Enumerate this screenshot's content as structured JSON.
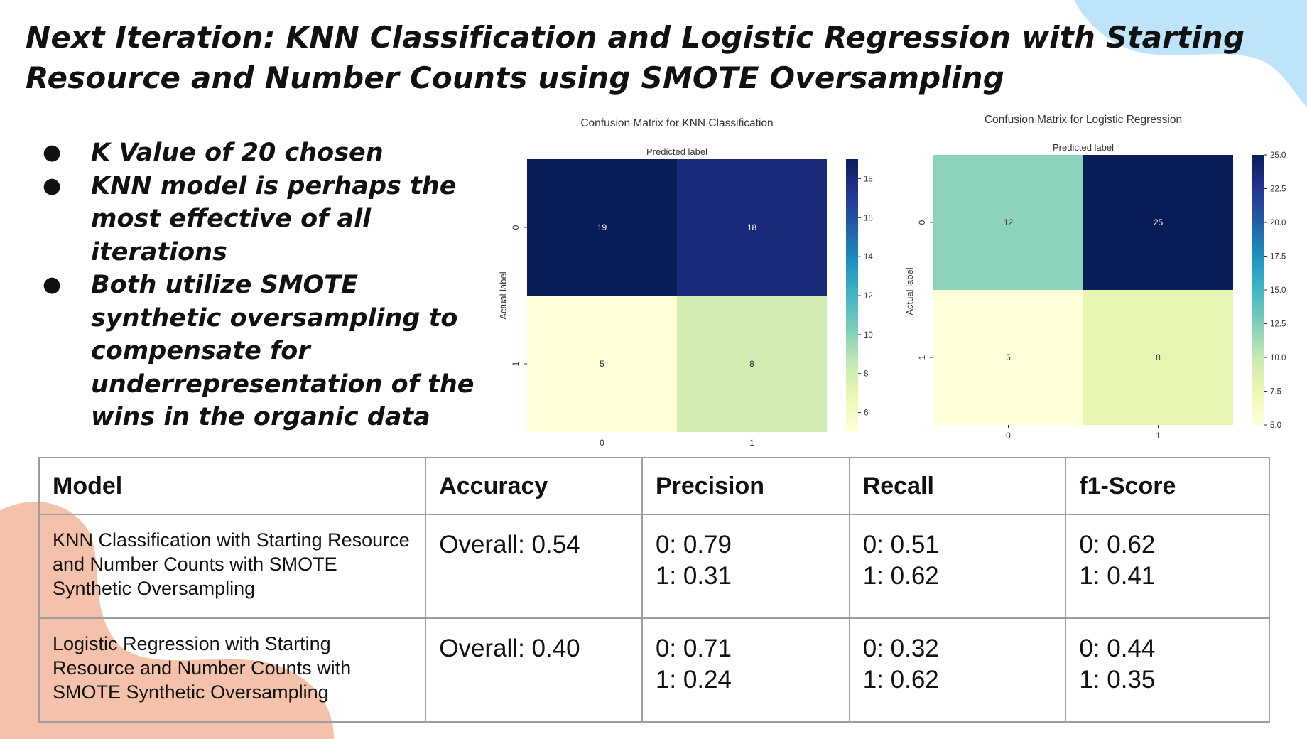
{
  "title": "Next Iteration: KNN Classification and Logistic Regression with Starting Resource and Number Counts using SMOTE Oversampling",
  "bullets": [
    "K Value of 20 chosen",
    "KNN model is perhaps the most effective of all iterations",
    "Both utilize SMOTE synthetic oversampling to compensate for underrepresentation of the wins in the organic data"
  ],
  "colors": {
    "blob_blue": "#bde4f8",
    "blob_peach": "#f4c1aa",
    "colormap": [
      "#ffffd9",
      "#edf8b1",
      "#c7e9b4",
      "#7fcdbb",
      "#41b6c4",
      "#1d91c0",
      "#225ea8",
      "#253494",
      "#081d58"
    ]
  },
  "chart_data": [
    {
      "type": "heatmap",
      "title": "Confusion Matrix for KNN Classification",
      "xlabel": "Predicted label",
      "ylabel": "Actual label",
      "x_ticks": [
        "0",
        "1"
      ],
      "y_ticks": [
        "0",
        "1"
      ],
      "values": [
        [
          19,
          18
        ],
        [
          5,
          8
        ]
      ],
      "colorbar": {
        "min": 5,
        "max": 19,
        "ticks": [
          "6",
          "8",
          "10",
          "12",
          "14",
          "16",
          "18"
        ]
      },
      "colormap": "YlGnBu"
    },
    {
      "type": "heatmap",
      "title": "Confusion Matrix for Logistic Regression",
      "xlabel": "Predicted label",
      "ylabel": "Actual label",
      "x_ticks": [
        "0",
        "1"
      ],
      "y_ticks": [
        "0",
        "1"
      ],
      "values": [
        [
          12,
          25
        ],
        [
          5,
          8
        ]
      ],
      "colorbar": {
        "min": 5,
        "max": 25,
        "ticks": [
          "5.0",
          "7.5",
          "10.0",
          "12.5",
          "15.0",
          "17.5",
          "20.0",
          "22.5",
          "25.0"
        ]
      },
      "colormap": "YlGnBu"
    }
  ],
  "table": {
    "headers": [
      "Model",
      "Accuracy",
      "Precision",
      "Recall",
      "f1-Score"
    ],
    "rows": [
      {
        "model": "KNN Classification with Starting Resource and Number Counts with SMOTE Synthetic Oversampling",
        "accuracy": "Overall: 0.54",
        "precision": [
          "0: 0.79",
          "1: 0.31"
        ],
        "recall": [
          "0: 0.51",
          "1: 0.62"
        ],
        "f1": [
          "0: 0.62",
          "1: 0.41"
        ]
      },
      {
        "model": "Logistic Regression with Starting Resource and Number Counts with SMOTE Synthetic Oversampling",
        "accuracy": "Overall: 0.40",
        "precision": [
          "0: 0.71",
          "1: 0.24"
        ],
        "recall": [
          "0: 0.32",
          "1: 0.62"
        ],
        "f1": [
          "0: 0.44",
          "1: 0.35"
        ]
      }
    ]
  }
}
